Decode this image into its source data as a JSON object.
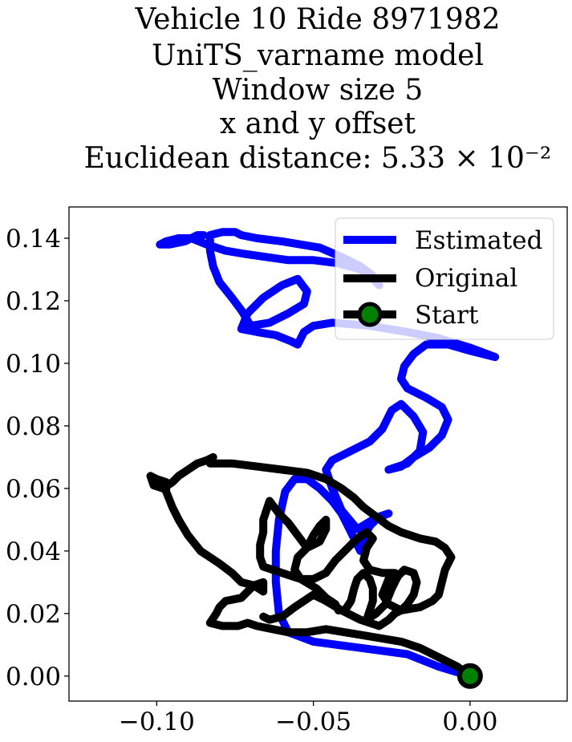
{
  "chart_data": {
    "type": "line",
    "title_lines": [
      "Vehicle 10 Ride 8971982",
      "UniTS_varname model",
      "Window size 5",
      "x and y offset",
      "Euclidean distance: 5.33 × 10⁻²"
    ],
    "title": "Vehicle 10 Ride 8971982 UniTS_varname model Window size 5 x and y offset Euclidean distance: 5.33 × 10⁻²",
    "xlabel": "",
    "ylabel": "",
    "xlim": [
      -0.128,
      0.031
    ],
    "ylim": [
      -0.008,
      0.15
    ],
    "xticks": [
      -0.1,
      -0.05,
      0.0
    ],
    "xtick_labels": [
      "−0.10",
      "−0.05",
      "0.00"
    ],
    "yticks": [
      0.0,
      0.02,
      0.04,
      0.06,
      0.08,
      0.1,
      0.12,
      0.14
    ],
    "ytick_labels": [
      "0.00",
      "0.02",
      "0.04",
      "0.06",
      "0.08",
      "0.10",
      "0.12",
      "0.14"
    ],
    "grid": false,
    "legend_position": "top-right",
    "legend": [
      "Estimated",
      "Original",
      "Start"
    ],
    "series": [
      {
        "name": "Estimated",
        "color": "#0000ff",
        "points": [
          [
            0.0,
            0.0
          ],
          [
            -0.01,
            0.003
          ],
          [
            -0.02,
            0.007
          ],
          [
            -0.035,
            0.009
          ],
          [
            -0.05,
            0.011
          ],
          [
            -0.058,
            0.014
          ],
          [
            -0.061,
            0.02
          ],
          [
            -0.062,
            0.03
          ],
          [
            -0.062,
            0.04
          ],
          [
            -0.061,
            0.05
          ],
          [
            -0.059,
            0.059
          ],
          [
            -0.056,
            0.063
          ],
          [
            -0.052,
            0.063
          ],
          [
            -0.048,
            0.06
          ],
          [
            -0.044,
            0.056
          ],
          [
            -0.041,
            0.052
          ],
          [
            -0.039,
            0.048
          ],
          [
            -0.037,
            0.044
          ],
          [
            -0.035,
            0.04
          ],
          [
            -0.034,
            0.044
          ],
          [
            -0.032,
            0.048
          ],
          [
            -0.029,
            0.051
          ],
          [
            -0.026,
            0.052
          ],
          [
            -0.031,
            0.05
          ],
          [
            -0.036,
            0.047
          ],
          [
            -0.041,
            0.053
          ],
          [
            -0.044,
            0.06
          ],
          [
            -0.046,
            0.066
          ],
          [
            -0.044,
            0.069
          ],
          [
            -0.038,
            0.072
          ],
          [
            -0.032,
            0.075
          ],
          [
            -0.028,
            0.079
          ],
          [
            -0.025,
            0.085
          ],
          [
            -0.022,
            0.087
          ],
          [
            -0.018,
            0.083
          ],
          [
            -0.015,
            0.078
          ],
          [
            -0.016,
            0.072
          ],
          [
            -0.02,
            0.068
          ],
          [
            -0.026,
            0.066
          ],
          [
            -0.022,
            0.067
          ],
          [
            -0.018,
            0.07
          ],
          [
            -0.013,
            0.073
          ],
          [
            -0.009,
            0.077
          ],
          [
            -0.007,
            0.082
          ],
          [
            -0.009,
            0.086
          ],
          [
            -0.014,
            0.089
          ],
          [
            -0.02,
            0.092
          ],
          [
            -0.022,
            0.095
          ],
          [
            -0.021,
            0.099
          ],
          [
            -0.018,
            0.103
          ],
          [
            -0.014,
            0.106
          ],
          [
            -0.007,
            0.106
          ],
          [
            0.0,
            0.104
          ],
          [
            0.008,
            0.102
          ],
          [
            0.0,
            0.105
          ],
          [
            -0.01,
            0.108
          ],
          [
            -0.02,
            0.11
          ],
          [
            -0.032,
            0.112
          ],
          [
            -0.044,
            0.113
          ],
          [
            -0.05,
            0.112
          ],
          [
            -0.053,
            0.11
          ],
          [
            -0.055,
            0.106
          ],
          [
            -0.057,
            0.107
          ],
          [
            -0.062,
            0.109
          ],
          [
            -0.068,
            0.11
          ],
          [
            -0.073,
            0.111
          ],
          [
            -0.071,
            0.116
          ],
          [
            -0.066,
            0.121
          ],
          [
            -0.06,
            0.125
          ],
          [
            -0.055,
            0.127
          ],
          [
            -0.052,
            0.123
          ],
          [
            -0.053,
            0.119
          ],
          [
            -0.058,
            0.116
          ],
          [
            -0.064,
            0.113
          ],
          [
            -0.07,
            0.112
          ],
          [
            -0.073,
            0.117
          ],
          [
            -0.076,
            0.121
          ],
          [
            -0.08,
            0.126
          ],
          [
            -0.082,
            0.131
          ],
          [
            -0.083,
            0.136
          ],
          [
            -0.083,
            0.141
          ],
          [
            -0.079,
            0.142
          ],
          [
            -0.075,
            0.142
          ],
          [
            -0.073,
            0.141
          ],
          [
            -0.068,
            0.14
          ],
          [
            -0.06,
            0.139
          ],
          [
            -0.054,
            0.138
          ],
          [
            -0.048,
            0.137
          ],
          [
            -0.041,
            0.134
          ],
          [
            -0.035,
            0.131
          ],
          [
            -0.031,
            0.128
          ],
          [
            -0.029,
            0.125
          ],
          [
            -0.031,
            0.127
          ],
          [
            -0.035,
            0.13
          ],
          [
            -0.042,
            0.132
          ],
          [
            -0.05,
            0.133
          ],
          [
            -0.058,
            0.133
          ],
          [
            -0.065,
            0.134
          ],
          [
            -0.072,
            0.135
          ],
          [
            -0.078,
            0.136
          ],
          [
            -0.084,
            0.138
          ],
          [
            -0.089,
            0.14
          ],
          [
            -0.093,
            0.14
          ],
          [
            -0.097,
            0.139
          ],
          [
            -0.099,
            0.138
          ],
          [
            -0.096,
            0.138
          ],
          [
            -0.091,
            0.139
          ],
          [
            -0.087,
            0.141
          ],
          [
            -0.085,
            0.141
          ]
        ]
      },
      {
        "name": "Original",
        "color": "#000000",
        "points": [
          [
            0.0,
            0.0
          ],
          [
            -0.004,
            0.003
          ],
          [
            -0.01,
            0.006
          ],
          [
            -0.016,
            0.009
          ],
          [
            -0.022,
            0.011
          ],
          [
            -0.028,
            0.012
          ],
          [
            -0.034,
            0.013
          ],
          [
            -0.04,
            0.014
          ],
          [
            -0.046,
            0.015
          ],
          [
            -0.052,
            0.014
          ],
          [
            -0.058,
            0.014
          ],
          [
            -0.063,
            0.015
          ],
          [
            -0.068,
            0.016
          ],
          [
            -0.071,
            0.017
          ],
          [
            -0.074,
            0.016
          ],
          [
            -0.079,
            0.016
          ],
          [
            -0.083,
            0.017
          ],
          [
            -0.081,
            0.02
          ],
          [
            -0.08,
            0.022
          ],
          [
            -0.078,
            0.024
          ],
          [
            -0.073,
            0.025
          ],
          [
            -0.069,
            0.029
          ],
          [
            -0.066,
            0.03
          ],
          [
            -0.066,
            0.027
          ],
          [
            -0.069,
            0.029
          ],
          [
            -0.073,
            0.03
          ],
          [
            -0.076,
            0.033
          ],
          [
            -0.08,
            0.036
          ],
          [
            -0.086,
            0.04
          ],
          [
            -0.09,
            0.045
          ],
          [
            -0.093,
            0.05
          ],
          [
            -0.095,
            0.054
          ],
          [
            -0.097,
            0.059
          ],
          [
            -0.097,
            0.062
          ],
          [
            -0.1,
            0.063
          ],
          [
            -0.102,
            0.064
          ],
          [
            -0.101,
            0.061
          ],
          [
            -0.098,
            0.06
          ],
          [
            -0.095,
            0.062
          ],
          [
            -0.093,
            0.064
          ],
          [
            -0.09,
            0.066
          ],
          [
            -0.087,
            0.068
          ],
          [
            -0.084,
            0.069
          ],
          [
            -0.082,
            0.07
          ],
          [
            -0.083,
            0.068
          ],
          [
            -0.076,
            0.068
          ],
          [
            -0.068,
            0.067
          ],
          [
            -0.06,
            0.066
          ],
          [
            -0.052,
            0.065
          ],
          [
            -0.046,
            0.063
          ],
          [
            -0.041,
            0.06
          ],
          [
            -0.037,
            0.057
          ],
          [
            -0.034,
            0.054
          ],
          [
            -0.03,
            0.051
          ],
          [
            -0.026,
            0.048
          ],
          [
            -0.022,
            0.046
          ],
          [
            -0.016,
            0.044
          ],
          [
            -0.011,
            0.043
          ],
          [
            -0.008,
            0.041
          ],
          [
            -0.006,
            0.038
          ],
          [
            -0.008,
            0.034
          ],
          [
            -0.009,
            0.03
          ],
          [
            -0.01,
            0.026
          ],
          [
            -0.012,
            0.024
          ],
          [
            -0.016,
            0.022
          ],
          [
            -0.022,
            0.021
          ],
          [
            -0.026,
            0.023
          ],
          [
            -0.028,
            0.026
          ],
          [
            -0.026,
            0.031
          ],
          [
            -0.024,
            0.033
          ],
          [
            -0.028,
            0.033
          ],
          [
            -0.032,
            0.034
          ],
          [
            -0.034,
            0.037
          ],
          [
            -0.033,
            0.041
          ],
          [
            -0.031,
            0.044
          ],
          [
            -0.033,
            0.046
          ],
          [
            -0.036,
            0.044
          ],
          [
            -0.039,
            0.041
          ],
          [
            -0.043,
            0.037
          ],
          [
            -0.046,
            0.033
          ],
          [
            -0.05,
            0.031
          ],
          [
            -0.054,
            0.031
          ],
          [
            -0.056,
            0.034
          ],
          [
            -0.055,
            0.038
          ],
          [
            -0.052,
            0.041
          ],
          [
            -0.048,
            0.043
          ],
          [
            -0.046,
            0.047
          ],
          [
            -0.046,
            0.05
          ],
          [
            -0.048,
            0.048
          ],
          [
            -0.05,
            0.045
          ],
          [
            -0.052,
            0.041
          ],
          [
            -0.055,
            0.045
          ],
          [
            -0.058,
            0.049
          ],
          [
            -0.061,
            0.052
          ],
          [
            -0.064,
            0.056
          ],
          [
            -0.066,
            0.05
          ],
          [
            -0.066,
            0.046
          ],
          [
            -0.067,
            0.042
          ],
          [
            -0.067,
            0.038
          ],
          [
            -0.066,
            0.035
          ],
          [
            -0.06,
            0.033
          ],
          [
            -0.054,
            0.031
          ],
          [
            -0.049,
            0.028
          ],
          [
            -0.046,
            0.025
          ],
          [
            -0.043,
            0.023
          ],
          [
            -0.042,
            0.021
          ],
          [
            -0.04,
            0.021
          ],
          [
            -0.038,
            0.024
          ],
          [
            -0.037,
            0.028
          ],
          [
            -0.036,
            0.031
          ],
          [
            -0.034,
            0.033
          ],
          [
            -0.032,
            0.031
          ],
          [
            -0.031,
            0.028
          ],
          [
            -0.031,
            0.024
          ],
          [
            -0.032,
            0.021
          ],
          [
            -0.033,
            0.018
          ],
          [
            -0.03,
            0.02
          ],
          [
            -0.027,
            0.023
          ],
          [
            -0.025,
            0.028
          ],
          [
            -0.023,
            0.032
          ],
          [
            -0.021,
            0.034
          ],
          [
            -0.018,
            0.033
          ],
          [
            -0.017,
            0.03
          ],
          [
            -0.018,
            0.026
          ],
          [
            -0.02,
            0.023
          ],
          [
            -0.022,
            0.021
          ],
          [
            -0.024,
            0.02
          ],
          [
            -0.026,
            0.018
          ],
          [
            -0.029,
            0.016
          ],
          [
            -0.035,
            0.018
          ],
          [
            -0.041,
            0.021
          ],
          [
            -0.046,
            0.024
          ],
          [
            -0.05,
            0.026
          ],
          [
            -0.056,
            0.022
          ],
          [
            -0.06,
            0.019
          ],
          [
            -0.064,
            0.018
          ],
          [
            -0.066,
            0.019
          ]
        ]
      }
    ],
    "start_point": {
      "name": "Start",
      "x": 0.0,
      "y": 0.0,
      "edge_color": "#000000",
      "face_color": "#008000"
    }
  }
}
